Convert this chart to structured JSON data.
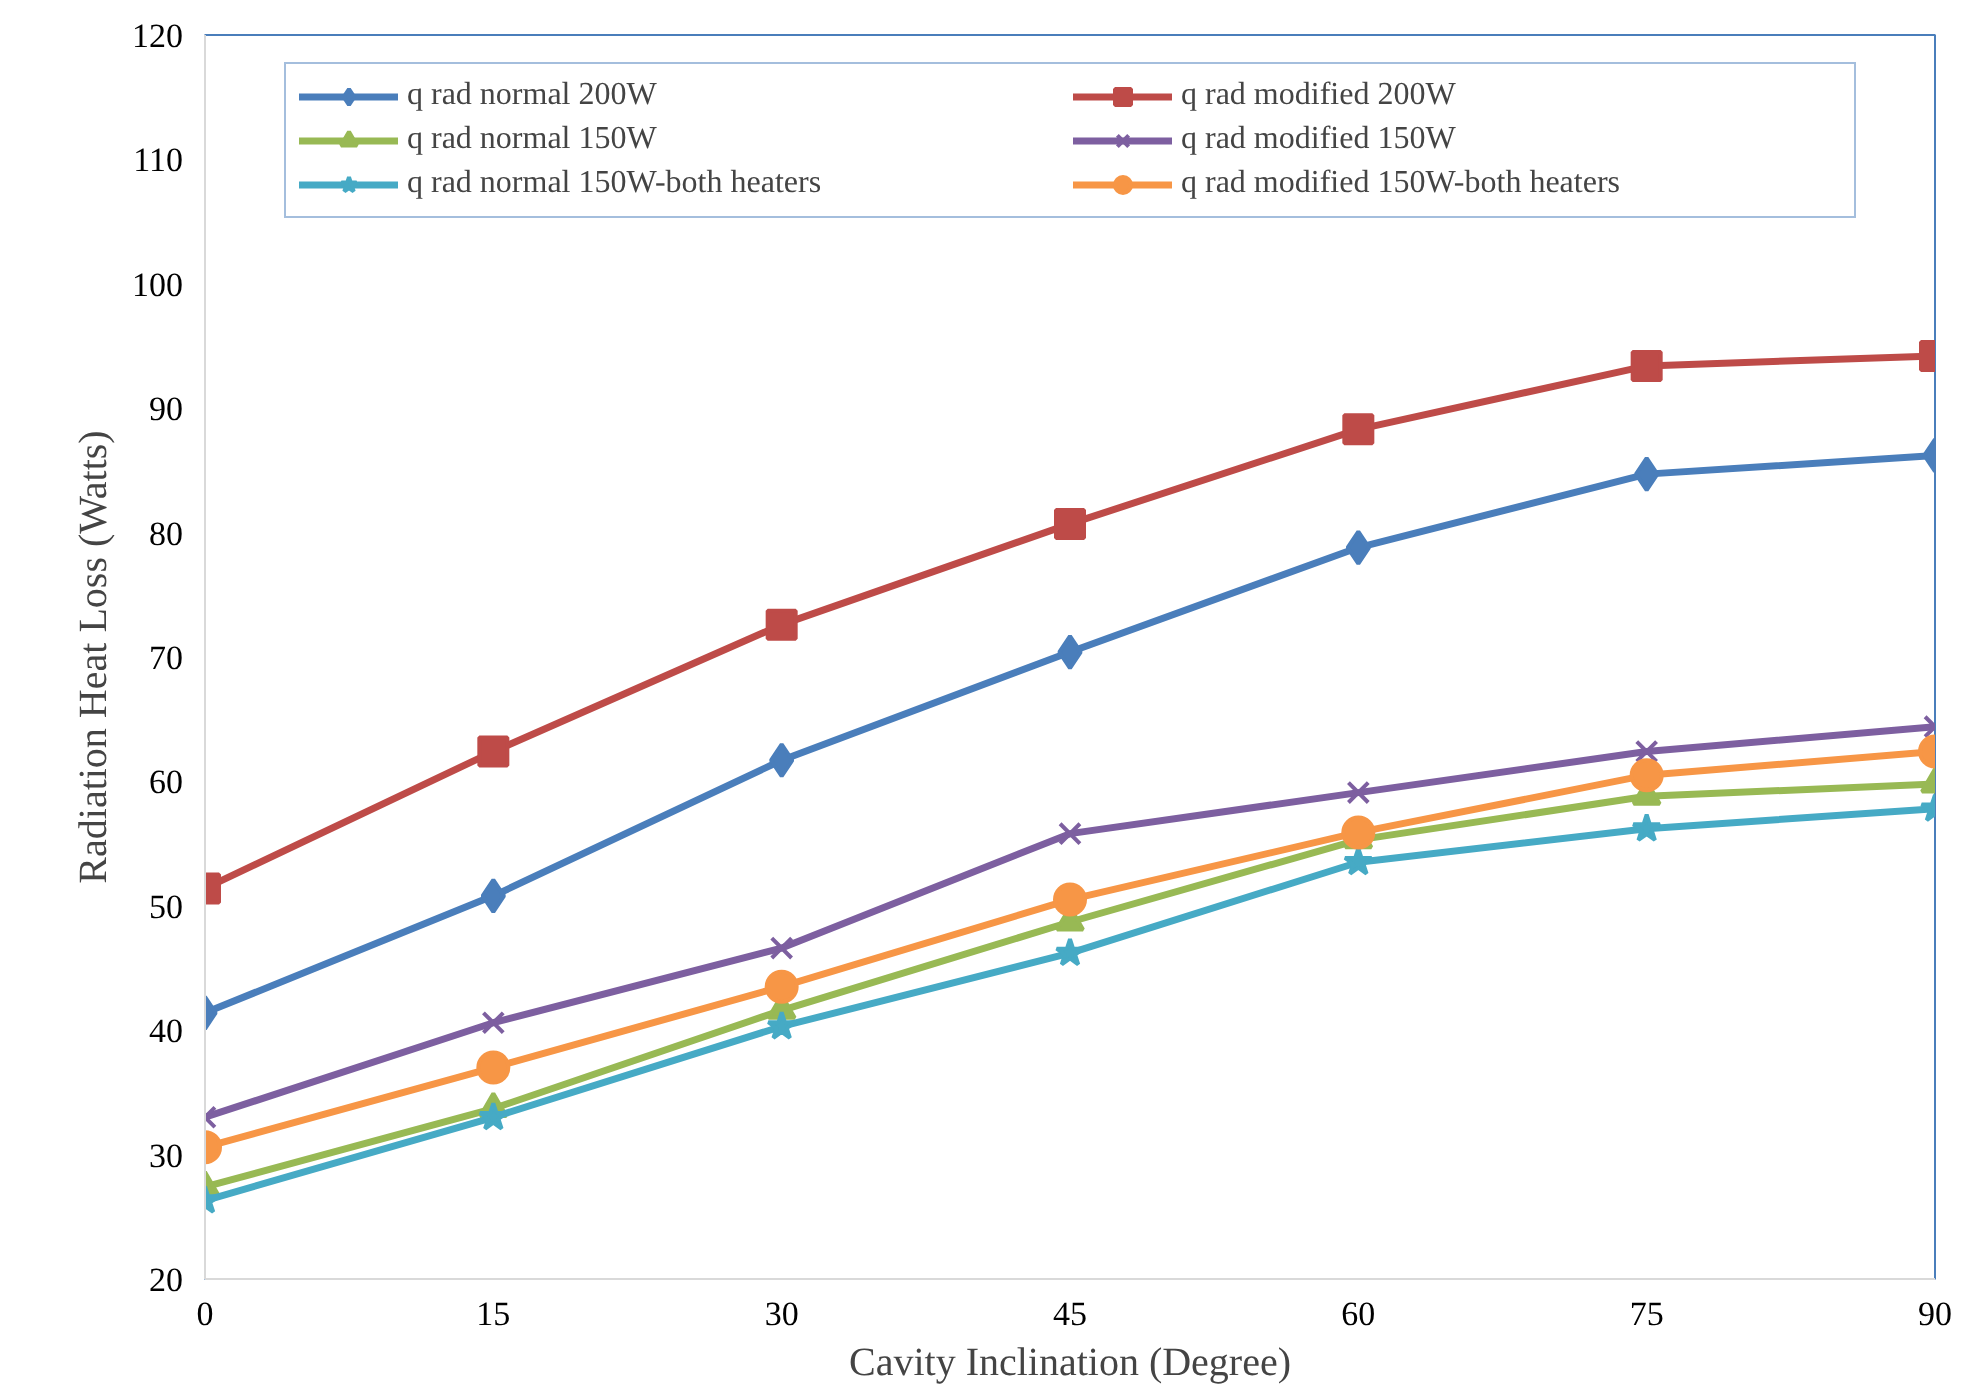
{
  "chart_data": {
    "type": "line",
    "xlabel": "Cavity Inclination (Degree)",
    "ylabel": "Radiation Heat Loss (Watts)",
    "x": [
      0,
      15,
      30,
      45,
      60,
      75,
      90
    ],
    "xlim": [
      0,
      90
    ],
    "xticks": [
      0,
      15,
      30,
      45,
      60,
      75,
      90
    ],
    "ylim": [
      20,
      120
    ],
    "yticks": [
      20,
      30,
      40,
      50,
      60,
      70,
      80,
      90,
      100,
      110,
      120
    ],
    "grid": false,
    "legend": "top",
    "series": [
      {
        "name": "q rad normal 200W",
        "color": "#4a7ebb",
        "marker": "diamond",
        "values": [
          41.4,
          50.8,
          61.7,
          70.4,
          78.8,
          84.7,
          86.2
        ]
      },
      {
        "name": "q rad modified 200W",
        "color": "#be4b48",
        "marker": "square",
        "values": [
          51.4,
          62.4,
          72.6,
          80.7,
          88.3,
          93.4,
          94.2
        ]
      },
      {
        "name": "q rad normal 150W",
        "color": "#98b954",
        "marker": "triangle",
        "values": [
          27.4,
          33.7,
          41.6,
          48.7,
          55.3,
          58.8,
          59.8
        ]
      },
      {
        "name": "q rad modified 150W",
        "color": "#7d5fa0",
        "marker": "cross",
        "values": [
          33.0,
          40.6,
          46.6,
          55.8,
          59.1,
          62.4,
          64.4
        ]
      },
      {
        "name": "q rad normal 150W-both heaters",
        "color": "#46aac5",
        "marker": "star",
        "values": [
          26.3,
          33.0,
          40.3,
          46.2,
          53.5,
          56.2,
          57.8
        ]
      },
      {
        "name": "q rad modified 150W-both heaters",
        "color": "#f79646",
        "marker": "circle",
        "values": [
          30.6,
          37.0,
          43.5,
          50.5,
          55.9,
          60.5,
          62.4
        ]
      }
    ]
  }
}
